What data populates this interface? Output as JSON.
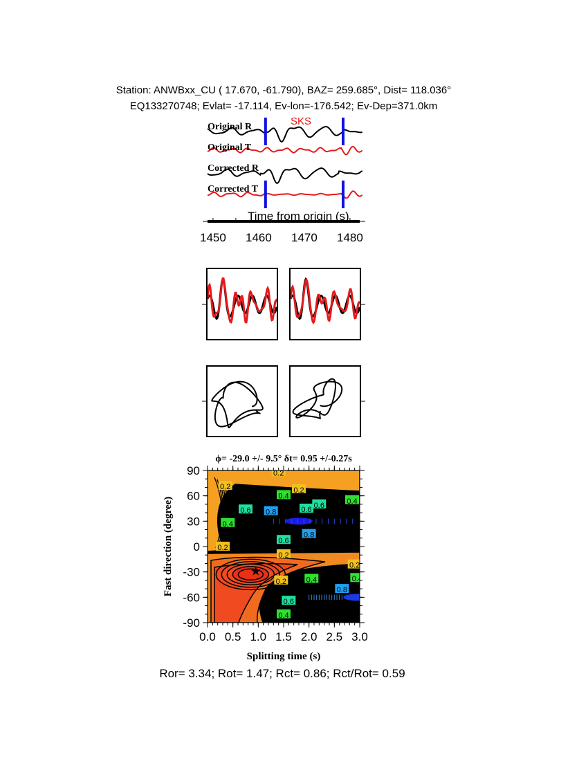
{
  "header": {
    "line1": "Station: ANWBxx_CU (  17.670,  -61.790), BAZ=  259.685°, Dist=  118.036°",
    "line2": "EQ133270748; Evlat= -17.114, Ev-lon=-176.542; Ev-Dep=371.0km"
  },
  "colors": {
    "radial": "#000000",
    "transverse": "#e41a1c",
    "window_marker": "#1010e0",
    "phase_label": "#e41a1c"
  },
  "traces": {
    "phase": "SKS",
    "labels": [
      "Original R",
      "Original T",
      "Corrected R",
      "Corrected T"
    ],
    "xlabel": "Time from origin (s)",
    "xticks": [
      "1450",
      "1460",
      "1470",
      "1480"
    ],
    "xlim": [
      1448,
      1483
    ],
    "window": [
      1461.5,
      1478.5
    ]
  },
  "chart_data": {
    "type": "heatmap",
    "title": "ϕ= -29.0 +/- 9.5° δt= 0.95 +/-0.27s",
    "xlabel": "Splitting time (s)",
    "ylabel": "Fast direction (degree)",
    "xlim": [
      0,
      3
    ],
    "ylim": [
      -90,
      90
    ],
    "xticks": [
      "0.0",
      "0.5",
      "1.0",
      "1.5",
      "2.0",
      "2.5",
      "3.0"
    ],
    "yticks": [
      "90",
      "60",
      "30",
      "0",
      "-30",
      "-60",
      "-90"
    ],
    "best_fit": {
      "dt": 0.95,
      "phi": -29.0
    },
    "contour_labels": [
      {
        "text": "0.2",
        "x": 0.35,
        "y": 72
      },
      {
        "text": "0.2",
        "x": 1.4,
        "y": 88
      },
      {
        "text": "0.2",
        "x": 1.8,
        "y": 68
      },
      {
        "text": "0.4",
        "x": 1.5,
        "y": 61
      },
      {
        "text": "0.6",
        "x": 0.75,
        "y": 44
      },
      {
        "text": "0.8",
        "x": 1.25,
        "y": 42
      },
      {
        "text": "0.6",
        "x": 2.2,
        "y": 50
      },
      {
        "text": "0.6",
        "x": 1.95,
        "y": 45
      },
      {
        "text": "0.4",
        "x": 2.85,
        "y": 55
      },
      {
        "text": "0.4",
        "x": 0.4,
        "y": 28
      },
      {
        "text": "0.8",
        "x": 2.0,
        "y": 15
      },
      {
        "text": "0.6",
        "x": 1.5,
        "y": 8
      },
      {
        "text": "0.2",
        "x": 1.5,
        "y": -9
      },
      {
        "text": "0.2",
        "x": 0.3,
        "y": 0
      },
      {
        "text": "0.2",
        "x": 2.9,
        "y": -21
      },
      {
        "text": "0.2",
        "x": 1.45,
        "y": -40
      },
      {
        "text": "0.4",
        "x": 2.05,
        "y": -38
      },
      {
        "text": "0.4",
        "x": 2.95,
        "y": -37
      },
      {
        "text": "0.8",
        "x": 2.65,
        "y": -50
      },
      {
        "text": "0.6",
        "x": 1.6,
        "y": -64
      },
      {
        "text": "0.4",
        "x": 1.5,
        "y": -80
      }
    ]
  },
  "footer": "Ror= 3.34; Rot= 1.47; Rct= 0.86; Rct/Rot= 0.59"
}
